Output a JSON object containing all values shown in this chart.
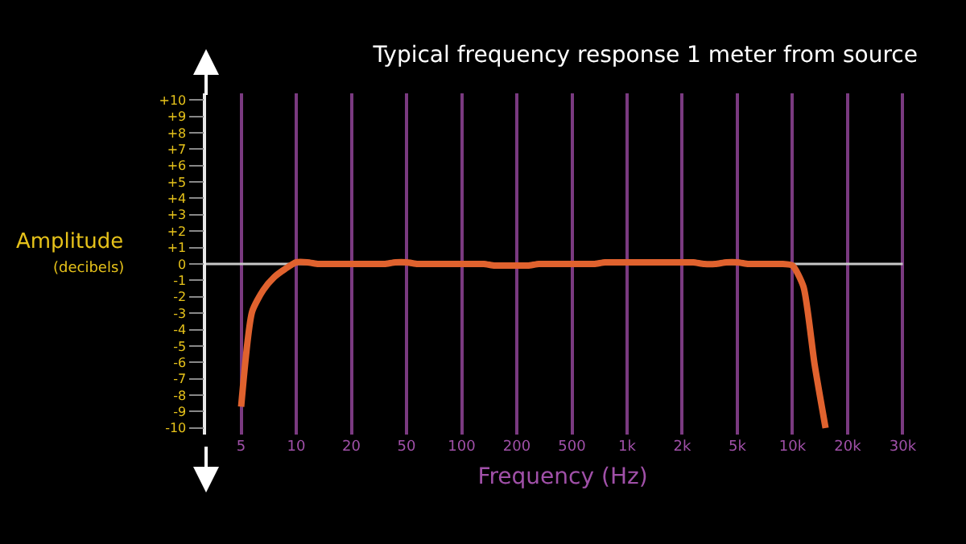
{
  "chart_data": {
    "type": "line",
    "title": "Typical frequency response 1 meter from source",
    "xlabel": "Frequency (Hz)",
    "ylabel": "Amplitude\n(decibels)",
    "categories": [
      "5",
      null,
      null,
      null,
      null,
      "10",
      null,
      null,
      null,
      null,
      "20",
      null,
      null,
      null,
      null,
      "50",
      null,
      null,
      null,
      null,
      "100",
      null,
      null,
      null,
      null,
      "200",
      null,
      null,
      null,
      null,
      "500",
      null,
      null,
      null,
      null,
      "1k",
      null,
      null,
      null,
      null,
      "2k",
      null,
      null,
      null,
      null,
      "5k",
      null,
      null,
      null,
      null,
      "10k",
      null,
      null,
      null,
      null,
      "20k",
      null,
      null,
      null,
      null,
      "30k"
    ],
    "series": [
      {
        "color": "#e0622e",
        "values": [
          -8.7,
          -2.9,
          -1.6,
          -0.8,
          -0.3,
          0.1,
          0.1,
          0.0,
          0.0,
          0.0,
          0.0,
          0.0,
          0.0,
          0.0,
          0.1,
          0.1,
          0.0,
          0.0,
          0.0,
          0.0,
          0.0,
          0.0,
          0.0,
          -0.1,
          -0.1,
          -0.1,
          -0.1,
          0.0,
          0.0,
          0.0,
          0.0,
          0.0,
          0.0,
          0.1,
          0.1,
          0.1,
          0.1,
          0.1,
          0.1,
          0.1,
          0.1,
          0.1,
          0.0,
          0.0,
          0.1,
          0.1,
          0.0,
          0.0,
          0.0,
          0.0,
          -0.1,
          -1.4,
          -6.1,
          -10,
          null,
          null,
          null,
          null,
          null,
          null,
          null
        ]
      }
    ],
    "ylim": [
      -10.4,
      10.4
    ],
    "yticks": [
      {
        "value": 10,
        "label": "+10"
      },
      {
        "value": 9,
        "label": "+9"
      },
      {
        "value": 8,
        "label": "+8"
      },
      {
        "value": 7,
        "label": "+7"
      },
      {
        "value": 6,
        "label": "+6"
      },
      {
        "value": 5,
        "label": "+5"
      },
      {
        "value": 4,
        "label": "+4"
      },
      {
        "value": 3,
        "label": "+3"
      },
      {
        "value": 2,
        "label": "+2"
      },
      {
        "value": 1,
        "label": "+1"
      },
      0,
      -1,
      -2,
      -3,
      -4,
      -5,
      -6,
      -7,
      -8,
      -9,
      -10
    ],
    "ref_lines": [
      {
        "axis": "y",
        "value": 0,
        "color": "#c8c8c8"
      }
    ],
    "grid": "x",
    "marker": "none",
    "line_style": "solid"
  }
}
